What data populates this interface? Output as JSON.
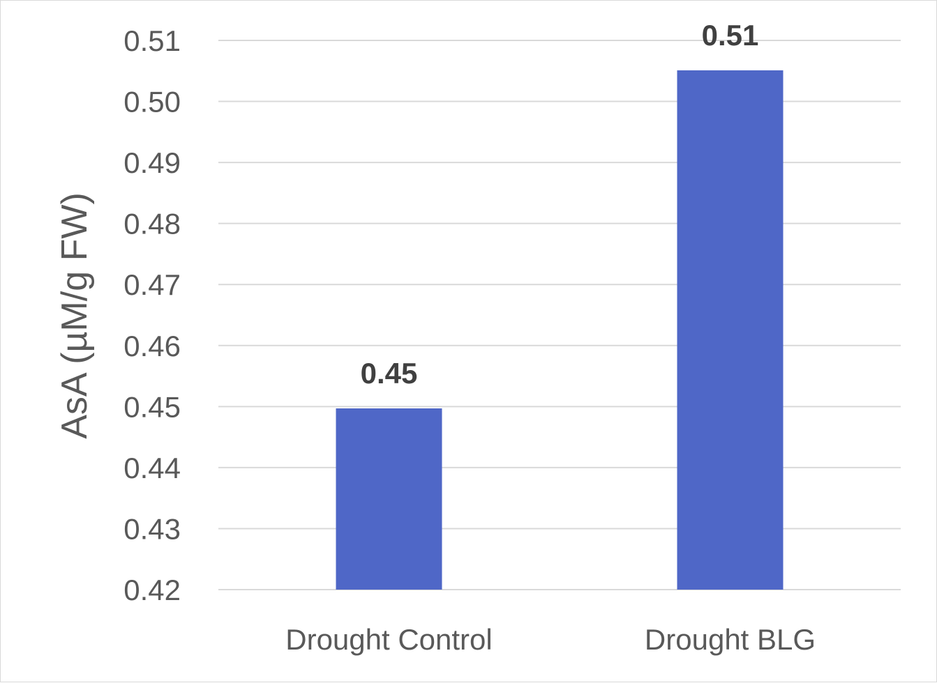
{
  "chart_data": {
    "type": "bar",
    "title": "",
    "xlabel": "",
    "ylabel": "AsA (µM/g FW)",
    "categories": [
      "Drought Control",
      "Drought BLG"
    ],
    "values": [
      0.4497,
      0.5051
    ],
    "data_labels": [
      "0.45",
      "0.51"
    ],
    "ylim": [
      0.42,
      0.51
    ],
    "yticks": [
      0.42,
      0.43,
      0.44,
      0.45,
      0.46,
      0.47,
      0.48,
      0.49,
      0.5,
      0.51
    ],
    "ytick_labels": [
      "0.42",
      "0.43",
      "0.44",
      "0.45",
      "0.46",
      "0.47",
      "0.48",
      "0.49",
      "0.50",
      "0.51"
    ],
    "grid": true,
    "legend": "none",
    "colors": {
      "bar": "#4f67c7",
      "grid": "#d9d9d9",
      "text": "#595959",
      "data_label": "#404040"
    }
  }
}
